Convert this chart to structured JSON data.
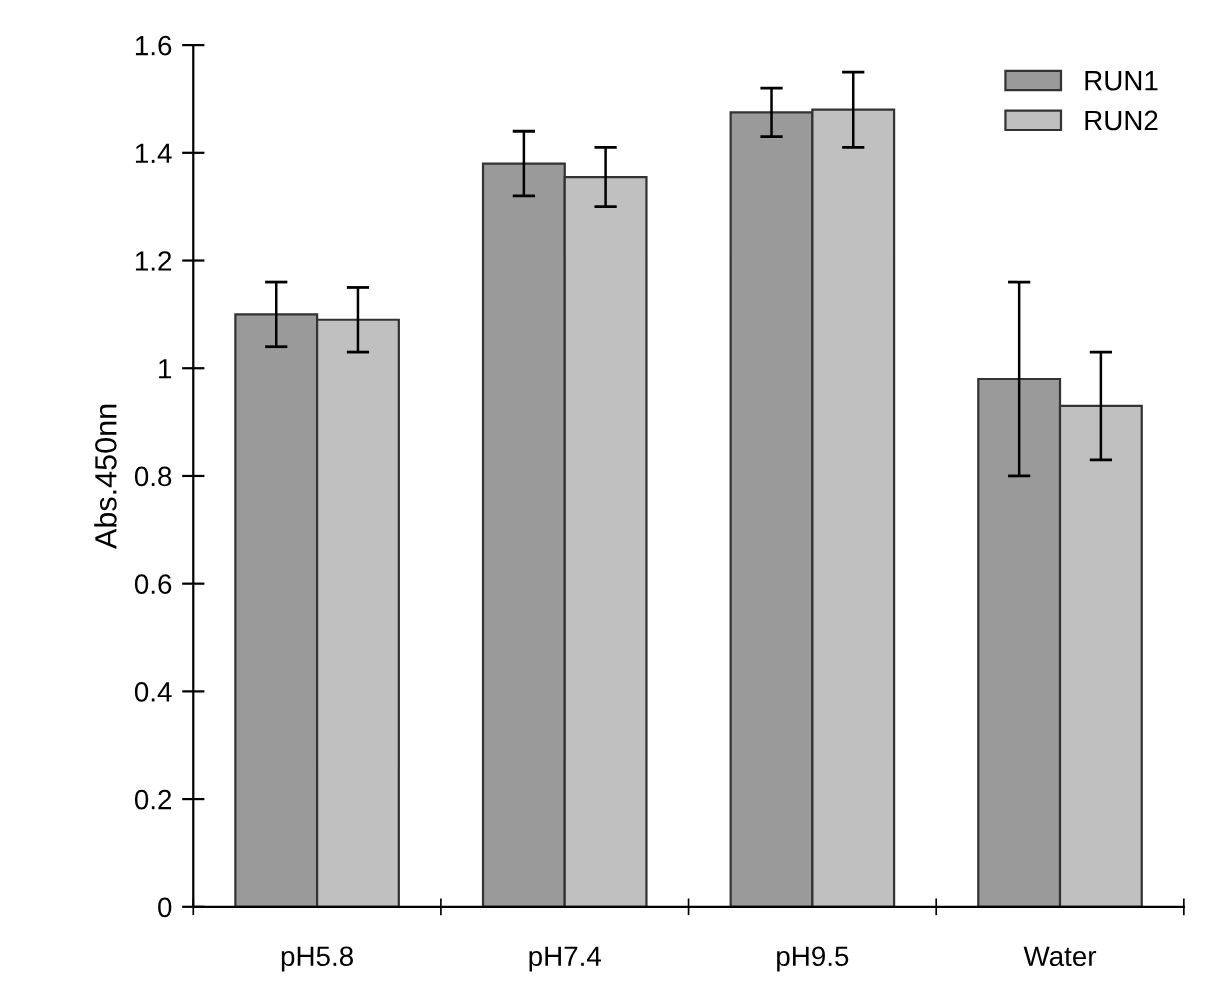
{
  "chart_data": {
    "type": "bar",
    "ylabel": "Abs.450nn",
    "categories": [
      "pH5.8",
      "pH7.4",
      "pH9.5",
      "Water"
    ],
    "series": [
      {
        "name": "RUN1",
        "color": "#9a9a9a",
        "values": [
          1.1,
          1.38,
          1.475,
          0.98
        ],
        "errors": [
          0.06,
          0.06,
          0.045,
          0.18
        ]
      },
      {
        "name": "RUN2",
        "color": "#c0c0c0",
        "values": [
          1.09,
          1.355,
          1.48,
          0.93
        ],
        "errors": [
          0.06,
          0.055,
          0.07,
          0.1
        ]
      }
    ],
    "ylim": [
      0,
      1.6
    ],
    "yticks": [
      0,
      0.2,
      0.4,
      0.6,
      0.8,
      1,
      1.2,
      1.4,
      1.6
    ],
    "grid": false,
    "legend": "top right"
  }
}
